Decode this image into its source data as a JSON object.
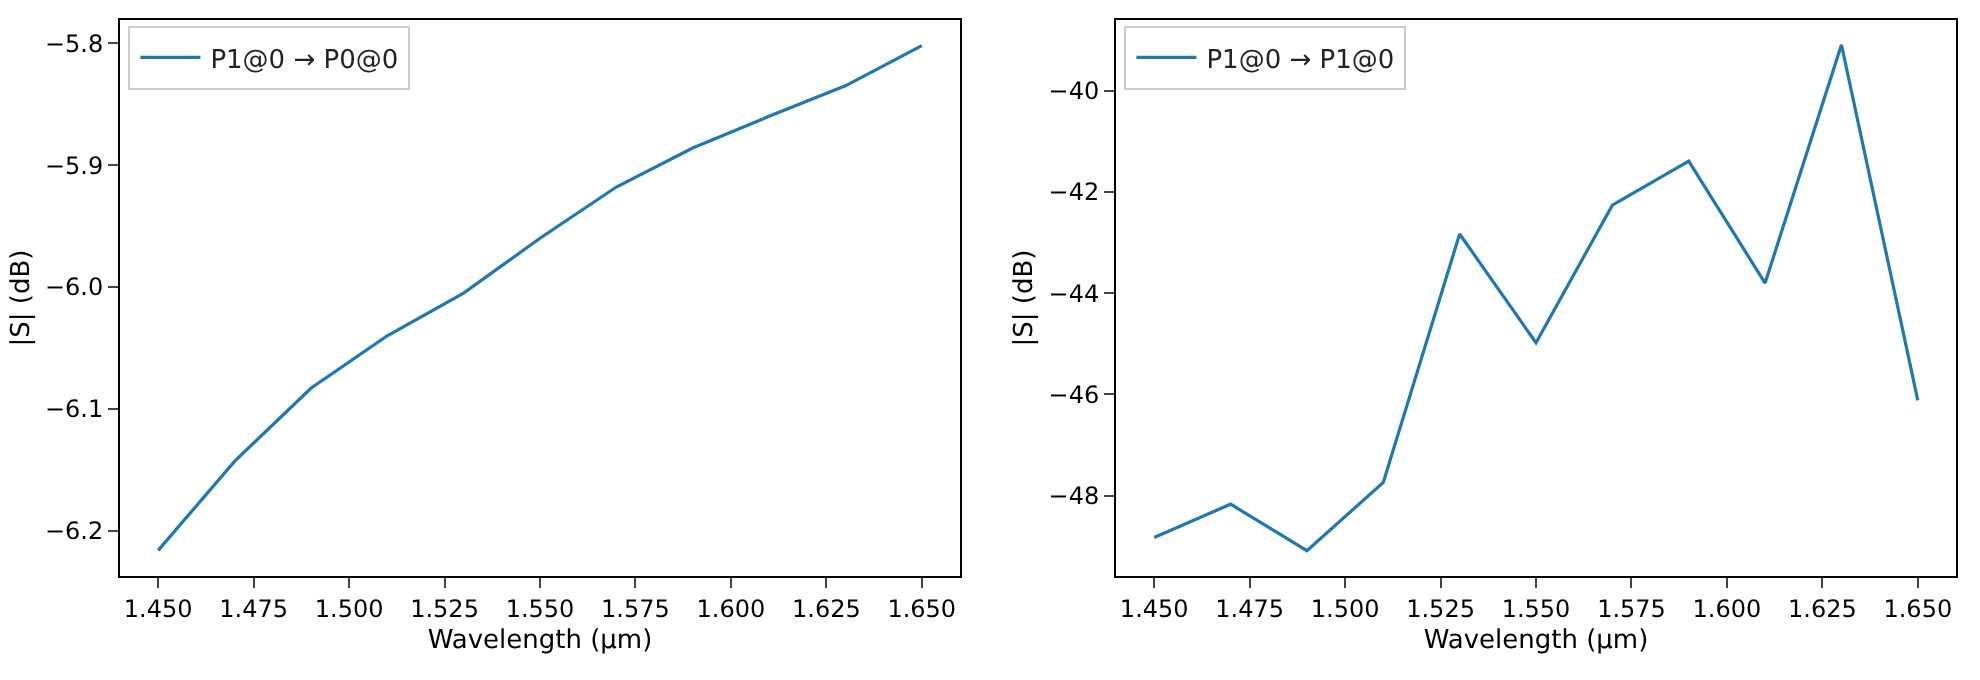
{
  "chart_data": [
    {
      "type": "line",
      "xlabel": "Wavelength (µm)",
      "ylabel": "|S| (dB)",
      "x": [
        1.45,
        1.47,
        1.49,
        1.51,
        1.53,
        1.55,
        1.57,
        1.59,
        1.61,
        1.63,
        1.65
      ],
      "series": [
        {
          "name": "P1@0 → P0@0",
          "color": "#1f77b4",
          "values": [
            -6.216,
            -6.143,
            -6.083,
            -6.04,
            -6.005,
            -5.96,
            -5.918,
            -5.886,
            -5.86,
            -5.835,
            -5.802
          ]
        }
      ],
      "xlim": [
        1.44,
        1.66
      ],
      "xticks": [
        {
          "value": 1.45,
          "label": "1.450"
        },
        {
          "value": 1.475,
          "label": "1.475"
        },
        {
          "value": 1.5,
          "label": "1.500"
        },
        {
          "value": 1.525,
          "label": "1.525"
        },
        {
          "value": 1.55,
          "label": "1.550"
        },
        {
          "value": 1.575,
          "label": "1.575"
        },
        {
          "value": 1.6,
          "label": "1.600"
        },
        {
          "value": 1.625,
          "label": "1.625"
        },
        {
          "value": 1.65,
          "label": "1.650"
        }
      ],
      "ylim": [
        -6.237,
        -5.781
      ],
      "yticks": [
        {
          "value": -6.2,
          "label": "−6.2"
        },
        {
          "value": -6.1,
          "label": "−6.1"
        },
        {
          "value": -6.0,
          "label": "−6.0"
        },
        {
          "value": -5.9,
          "label": "−5.9"
        },
        {
          "value": -5.8,
          "label": "−5.8"
        }
      ],
      "legend": "top left",
      "line_style": "solid"
    },
    {
      "type": "line",
      "xlabel": "Wavelength (µm)",
      "ylabel": "|S| (dB)",
      "x": [
        1.45,
        1.47,
        1.49,
        1.51,
        1.53,
        1.55,
        1.57,
        1.59,
        1.61,
        1.63,
        1.65
      ],
      "series": [
        {
          "name": "P1@0 → P1@0",
          "color": "#1f77b4",
          "values": [
            -48.83,
            -48.17,
            -49.09,
            -47.74,
            -42.83,
            -44.98,
            -42.26,
            -41.39,
            -43.8,
            -39.09,
            -46.12
          ]
        }
      ],
      "xlim": [
        1.44,
        1.66
      ],
      "xticks": [
        {
          "value": 1.45,
          "label": "1.450"
        },
        {
          "value": 1.475,
          "label": "1.475"
        },
        {
          "value": 1.5,
          "label": "1.500"
        },
        {
          "value": 1.525,
          "label": "1.525"
        },
        {
          "value": 1.55,
          "label": "1.550"
        },
        {
          "value": 1.575,
          "label": "1.575"
        },
        {
          "value": 1.6,
          "label": "1.600"
        },
        {
          "value": 1.625,
          "label": "1.625"
        },
        {
          "value": 1.65,
          "label": "1.650"
        }
      ],
      "ylim": [
        -49.59,
        -38.6
      ],
      "yticks": [
        {
          "value": -48,
          "label": "−48"
        },
        {
          "value": -46,
          "label": "−46"
        },
        {
          "value": -44,
          "label": "−44"
        },
        {
          "value": -42,
          "label": "−42"
        },
        {
          "value": -40,
          "label": "−40"
        }
      ],
      "legend": "top left",
      "line_style": "solid"
    }
  ]
}
